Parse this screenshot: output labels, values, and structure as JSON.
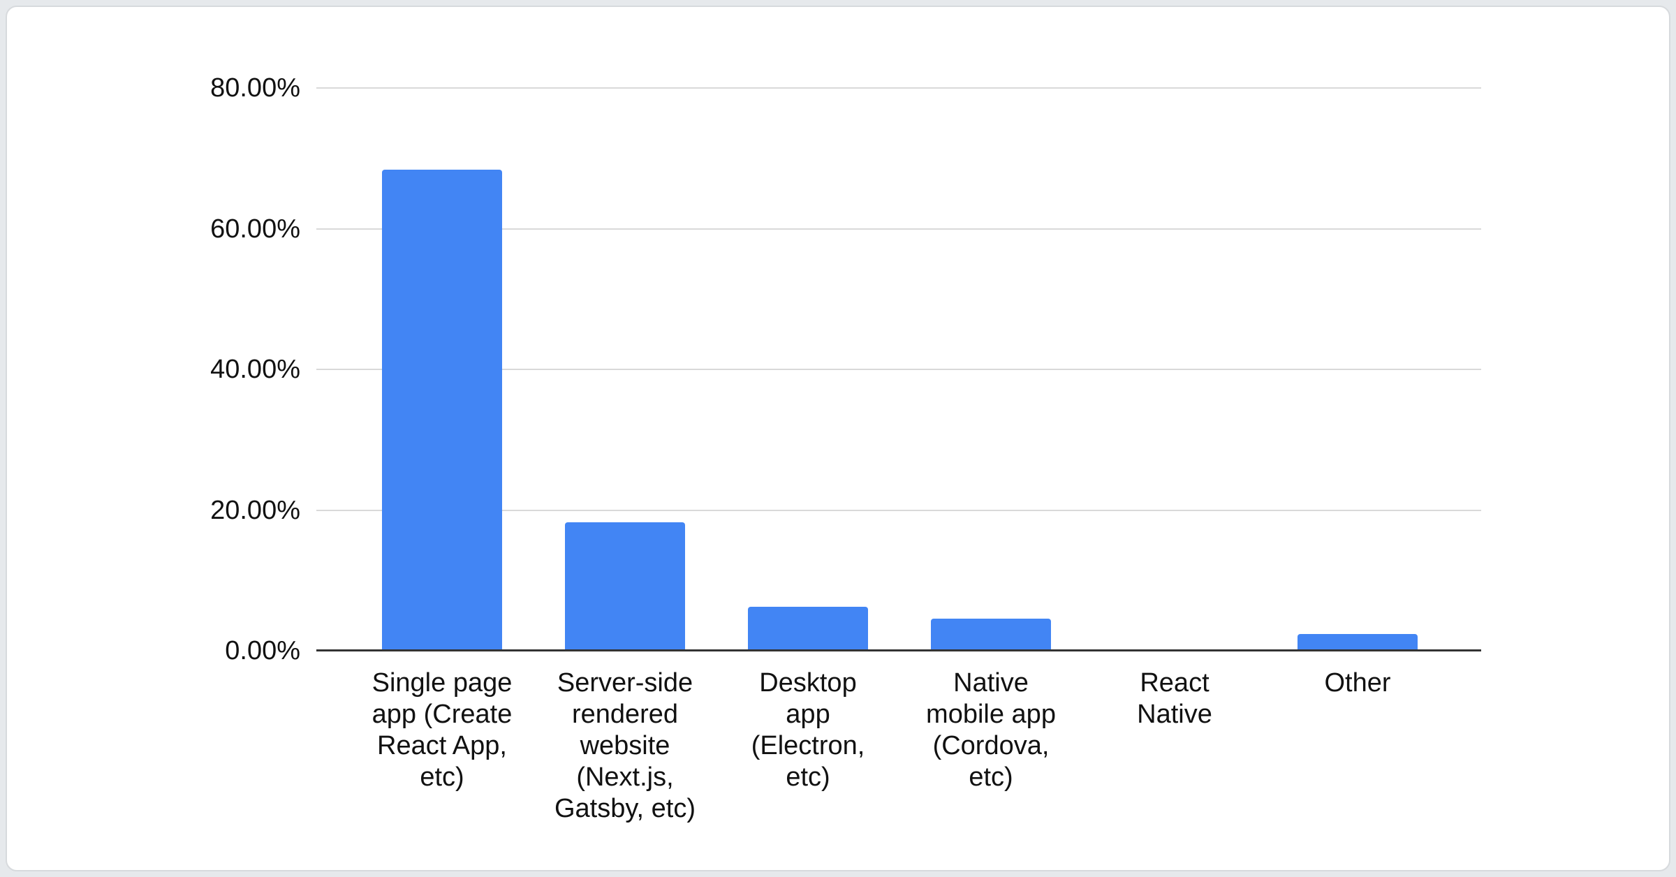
{
  "window": {
    "background_color": "#E6E9EC",
    "card_background": "#FFFFFF",
    "card_border_color": "#D7DADD"
  },
  "chart_data": {
    "type": "bar",
    "title": "",
    "xlabel": "",
    "ylabel": "",
    "legend": "none",
    "grid": true,
    "categories": [
      "Single page app (Create React App, etc)",
      "Server-side rendered website (Next.js, Gatsby, etc)",
      "Desktop app (Electron, etc)",
      "Native mobile app (Cordova, etc)",
      "React Native",
      "Other"
    ],
    "category_display_lines": [
      [
        "Single page",
        "app (Create",
        "React App,",
        "etc)"
      ],
      [
        "Server-side",
        "rendered",
        "website",
        "(Next.js,",
        "Gatsby, etc)"
      ],
      [
        "Desktop",
        "app",
        "(Electron,",
        "etc)"
      ],
      [
        "Native",
        "mobile app",
        "(Cordova,",
        "etc)"
      ],
      [
        "React",
        "Native"
      ],
      [
        "Other"
      ]
    ],
    "values": [
      68.3,
      18.2,
      6.2,
      4.5,
      0,
      2.3
    ],
    "value_unit": "%",
    "y_axis": {
      "min": 0,
      "max": 80,
      "ticks": [
        "80.00%",
        "60.00%",
        "40.00%",
        "20.00%",
        "0.00%"
      ],
      "tick_values": [
        80,
        60,
        40,
        20,
        0
      ]
    },
    "colors": {
      "bar": "#4285F4",
      "gridline": "#D9D9D9",
      "axis_line": "#333333",
      "tick_label": "#111111",
      "category_label": "#111111"
    }
  }
}
